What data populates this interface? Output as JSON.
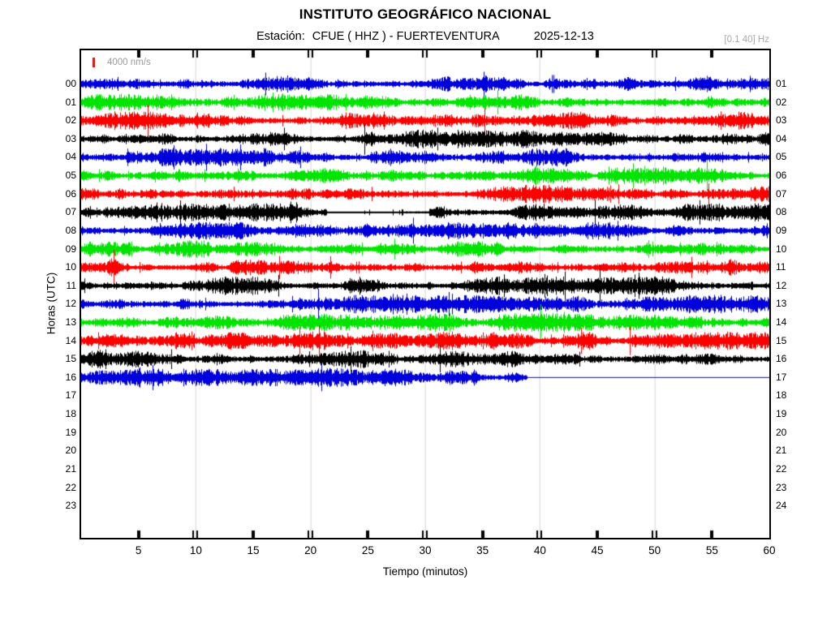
{
  "header": {
    "title": "INSTITUTO GEOGRÁFICO NACIONAL",
    "station_label": "Estación:",
    "station": "CFUE ( HHZ ) - FUERTEVENTURA",
    "date": "2025-12-13",
    "filter": "[0.1 40] Hz"
  },
  "chart_data": {
    "type": "line",
    "subtype": "helicorder-seismogram",
    "title": "INSTITUTO GEOGRÁFICO NACIONAL",
    "station": "CFUE ( HHZ ) - FUERTEVENTURA",
    "date": "2025-12-13",
    "frequency_band_hz": "[0.1 40] Hz",
    "amplitude_scale_label": "4000 nm/s",
    "xlabel": "Tiempo (minutos)",
    "ylabel": "Horas (UTC)",
    "xlim": [
      0,
      60
    ],
    "x_tick_minutes": [
      5,
      10,
      15,
      20,
      25,
      30,
      35,
      40,
      45,
      50,
      55,
      60
    ],
    "x_tick_labels": [
      "5",
      "10",
      "15",
      "20",
      "25",
      "30",
      "35",
      "40",
      "45",
      "50",
      "55",
      "60"
    ],
    "x_gridline_minutes": [
      10,
      20,
      30,
      40,
      50
    ],
    "grid": "vertical-only",
    "trace_color_cycle": [
      "#0000dd",
      "#00e400",
      "#ff0000",
      "#000000"
    ],
    "rows": [
      {
        "left_label": "00",
        "right_label": "01",
        "color": "#0000dd",
        "start_minute": 0,
        "end_minute": 60
      },
      {
        "left_label": "01",
        "right_label": "02",
        "color": "#00e400",
        "start_minute": 0,
        "end_minute": 60
      },
      {
        "left_label": "02",
        "right_label": "03",
        "color": "#ff0000",
        "start_minute": 0,
        "end_minute": 60
      },
      {
        "left_label": "03",
        "right_label": "04",
        "color": "#000000",
        "start_minute": 0,
        "end_minute": 60
      },
      {
        "left_label": "04",
        "right_label": "05",
        "color": "#0000dd",
        "start_minute": 0,
        "end_minute": 60
      },
      {
        "left_label": "05",
        "right_label": "06",
        "color": "#00e400",
        "start_minute": 0,
        "end_minute": 60
      },
      {
        "left_label": "06",
        "right_label": "07",
        "color": "#ff0000",
        "start_minute": 0,
        "end_minute": 60
      },
      {
        "left_label": "07",
        "right_label": "08",
        "color": "#000000",
        "start_minute": 0,
        "end_minute": 60,
        "quiet_segments": [
          [
            21.3,
            30.3
          ]
        ]
      },
      {
        "left_label": "08",
        "right_label": "09",
        "color": "#0000dd",
        "start_minute": 0,
        "end_minute": 60
      },
      {
        "left_label": "09",
        "right_label": "10",
        "color": "#00e400",
        "start_minute": 0,
        "end_minute": 60
      },
      {
        "left_label": "10",
        "right_label": "11",
        "color": "#ff0000",
        "start_minute": 0,
        "end_minute": 60
      },
      {
        "left_label": "11",
        "right_label": "12",
        "color": "#000000",
        "start_minute": 0,
        "end_minute": 60
      },
      {
        "left_label": "12",
        "right_label": "13",
        "color": "#0000dd",
        "start_minute": 0,
        "end_minute": 60
      },
      {
        "left_label": "13",
        "right_label": "14",
        "color": "#00e400",
        "start_minute": 0,
        "end_minute": 60
      },
      {
        "left_label": "14",
        "right_label": "15",
        "color": "#ff0000",
        "start_minute": 0,
        "end_minute": 60
      },
      {
        "left_label": "15",
        "right_label": "16",
        "color": "#000000",
        "start_minute": 0,
        "end_minute": 60
      },
      {
        "left_label": "16",
        "right_label": "17",
        "color": "#0000dd",
        "start_minute": 0,
        "end_minute": 38.9,
        "flat_line_to_minute": 60
      },
      {
        "left_label": "17",
        "right_label": "18",
        "no_data": true
      },
      {
        "left_label": "18",
        "right_label": "19",
        "no_data": true
      },
      {
        "left_label": "19",
        "right_label": "20",
        "no_data": true
      },
      {
        "left_label": "20",
        "right_label": "21",
        "no_data": true
      },
      {
        "left_label": "21",
        "right_label": "22",
        "no_data": true
      },
      {
        "left_label": "22",
        "right_label": "23",
        "no_data": true
      },
      {
        "left_label": "23",
        "right_label": "24",
        "no_data": true
      }
    ]
  },
  "colors": {
    "gridline": "#e4e4e4",
    "axis": "#000000",
    "muted_text": "#a0a0a0",
    "scale_marker": "#e02020"
  }
}
